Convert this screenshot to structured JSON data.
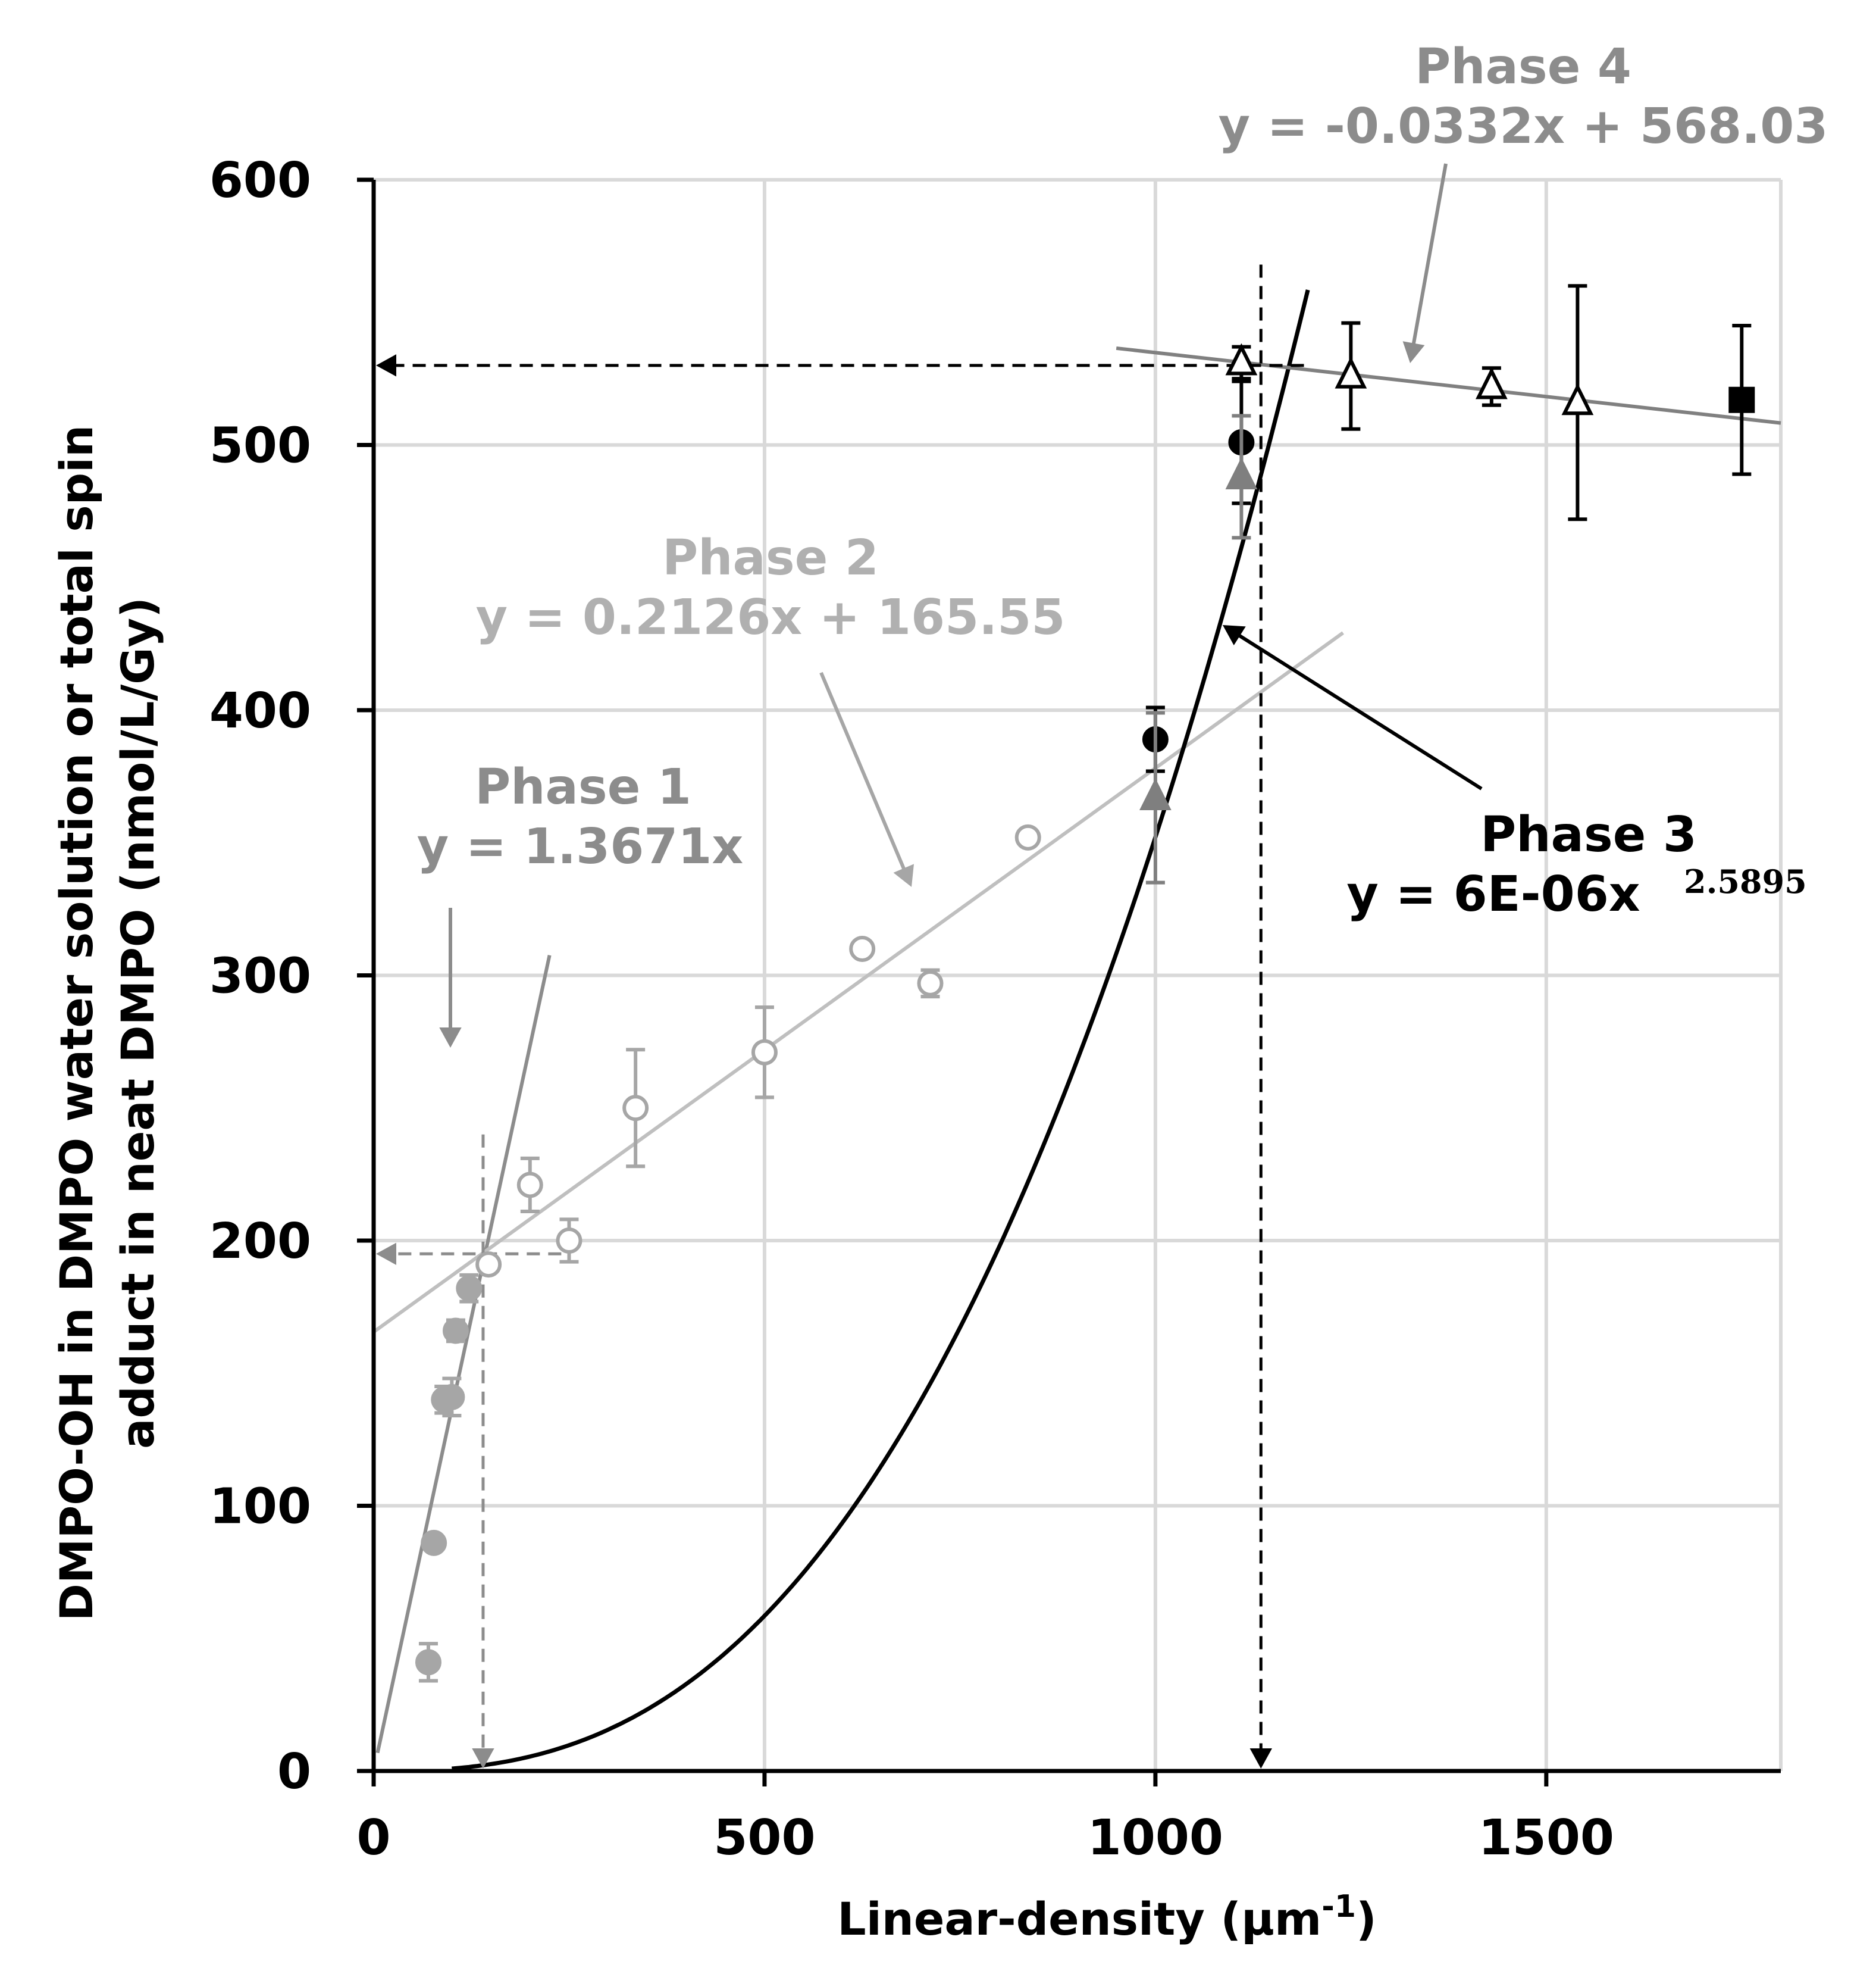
{
  "chart_data": {
    "type": "scatter",
    "xlabel_main": "Linear-density (µm",
    "xlabel_sup": "-1",
    "xlabel_tail": ")",
    "ylabel_line1": "DMPO-OH in DMPO water solution or total spin",
    "ylabel_line2": "adduct in neat DMPO (nmol/L/Gy)",
    "xlim": [
      0,
      1800
    ],
    "ylim": [
      0,
      600
    ],
    "xticks": [
      0,
      500,
      1000,
      1500
    ],
    "yticks": [
      0,
      100,
      200,
      300,
      400,
      500,
      600
    ],
    "xtick_labels": [
      "0",
      "500",
      "1000",
      "1500"
    ],
    "ytick_labels": [
      "0",
      "100",
      "200",
      "300",
      "400",
      "500",
      "600"
    ],
    "grid": true,
    "colors": {
      "phase1": "#8c8c8c",
      "phase1_points": "#a6a6a6",
      "phase2": "#bfbfbf",
      "phase2_points": "#a6a6a6",
      "phase3": "#000000",
      "phase4": "#808080",
      "triangles_filled": "#7f7f7f",
      "grid": "#d9d9d9"
    },
    "series": [
      {
        "name": "phase1-points",
        "marker": "filled-circle",
        "points": [
          {
            "x": 70,
            "y": 41,
            "err": 7
          },
          {
            "x": 77,
            "y": 86,
            "err": 0
          },
          {
            "x": 90,
            "y": 140,
            "err": 5
          },
          {
            "x": 100,
            "y": 141,
            "err": 7
          },
          {
            "x": 105,
            "y": 166,
            "err": 4
          },
          {
            "x": 122,
            "y": 182,
            "err": 5
          }
        ]
      },
      {
        "name": "phase2-points",
        "marker": "open-circle",
        "points": [
          {
            "x": 147,
            "y": 191,
            "err": 0
          },
          {
            "x": 200,
            "y": 221,
            "err": 10
          },
          {
            "x": 250,
            "y": 200,
            "err": 8
          },
          {
            "x": 335,
            "y": 250,
            "err": 22
          },
          {
            "x": 500,
            "y": 271,
            "err": 17
          },
          {
            "x": 625,
            "y": 310,
            "err": 0
          },
          {
            "x": 712,
            "y": 297,
            "err": 5
          },
          {
            "x": 837,
            "y": 352,
            "err": 0
          }
        ]
      },
      {
        "name": "phase3-points",
        "marker": "filled-circle-black",
        "points": [
          {
            "x": 1000,
            "y": 389,
            "err": 12
          },
          {
            "x": 1110,
            "y": 501,
            "err": 23
          }
        ]
      },
      {
        "name": "phase3-triangles",
        "marker": "filled-triangle",
        "points": [
          {
            "x": 1000,
            "y": 367,
            "err": 32
          },
          {
            "x": 1110,
            "y": 488,
            "err": 23
          }
        ]
      },
      {
        "name": "phase4-points",
        "marker": "open-triangle",
        "points": [
          {
            "x": 1110,
            "y": 531,
            "err": 6
          },
          {
            "x": 1250,
            "y": 526,
            "err": 20
          },
          {
            "x": 1430,
            "y": 522,
            "err": 7
          },
          {
            "x": 1540,
            "y": 516,
            "err": 44
          }
        ]
      },
      {
        "name": "square-point",
        "marker": "filled-square",
        "points": [
          {
            "x": 1750,
            "y": 517,
            "err": 28
          }
        ]
      }
    ],
    "fits": [
      {
        "name": "phase1",
        "kind": "linear",
        "slope": 1.3671,
        "intercept": 0,
        "x_range": [
          5,
          225
        ]
      },
      {
        "name": "phase2",
        "kind": "linear",
        "slope": 0.2126,
        "intercept": 165.55,
        "x_range": [
          0,
          1240
        ]
      },
      {
        "name": "phase3",
        "kind": "power",
        "coef": 6e-06,
        "exponent": 2.5895,
        "x_range": [
          100,
          1195
        ]
      },
      {
        "name": "phase4",
        "kind": "linear",
        "slope": -0.0332,
        "intercept": 568.03,
        "x_range": [
          950,
          1800
        ]
      }
    ],
    "guides": [
      {
        "name": "guide-phase1",
        "x": 140,
        "y": 195
      },
      {
        "name": "guide-phase3",
        "x": 1135,
        "y": 530
      }
    ],
    "annotations": {
      "phase1": {
        "title": "Phase 1",
        "equation": "y = 1.3671x"
      },
      "phase2": {
        "title": "Phase 2",
        "equation": "y = 0.2126x + 165.55"
      },
      "phase3": {
        "title": "Phase 3",
        "equation": "y = 6E-06x",
        "exponent": "2.5895"
      },
      "phase4": {
        "title": "Phase 4",
        "equation": "y = -0.0332x + 568.03"
      }
    }
  }
}
